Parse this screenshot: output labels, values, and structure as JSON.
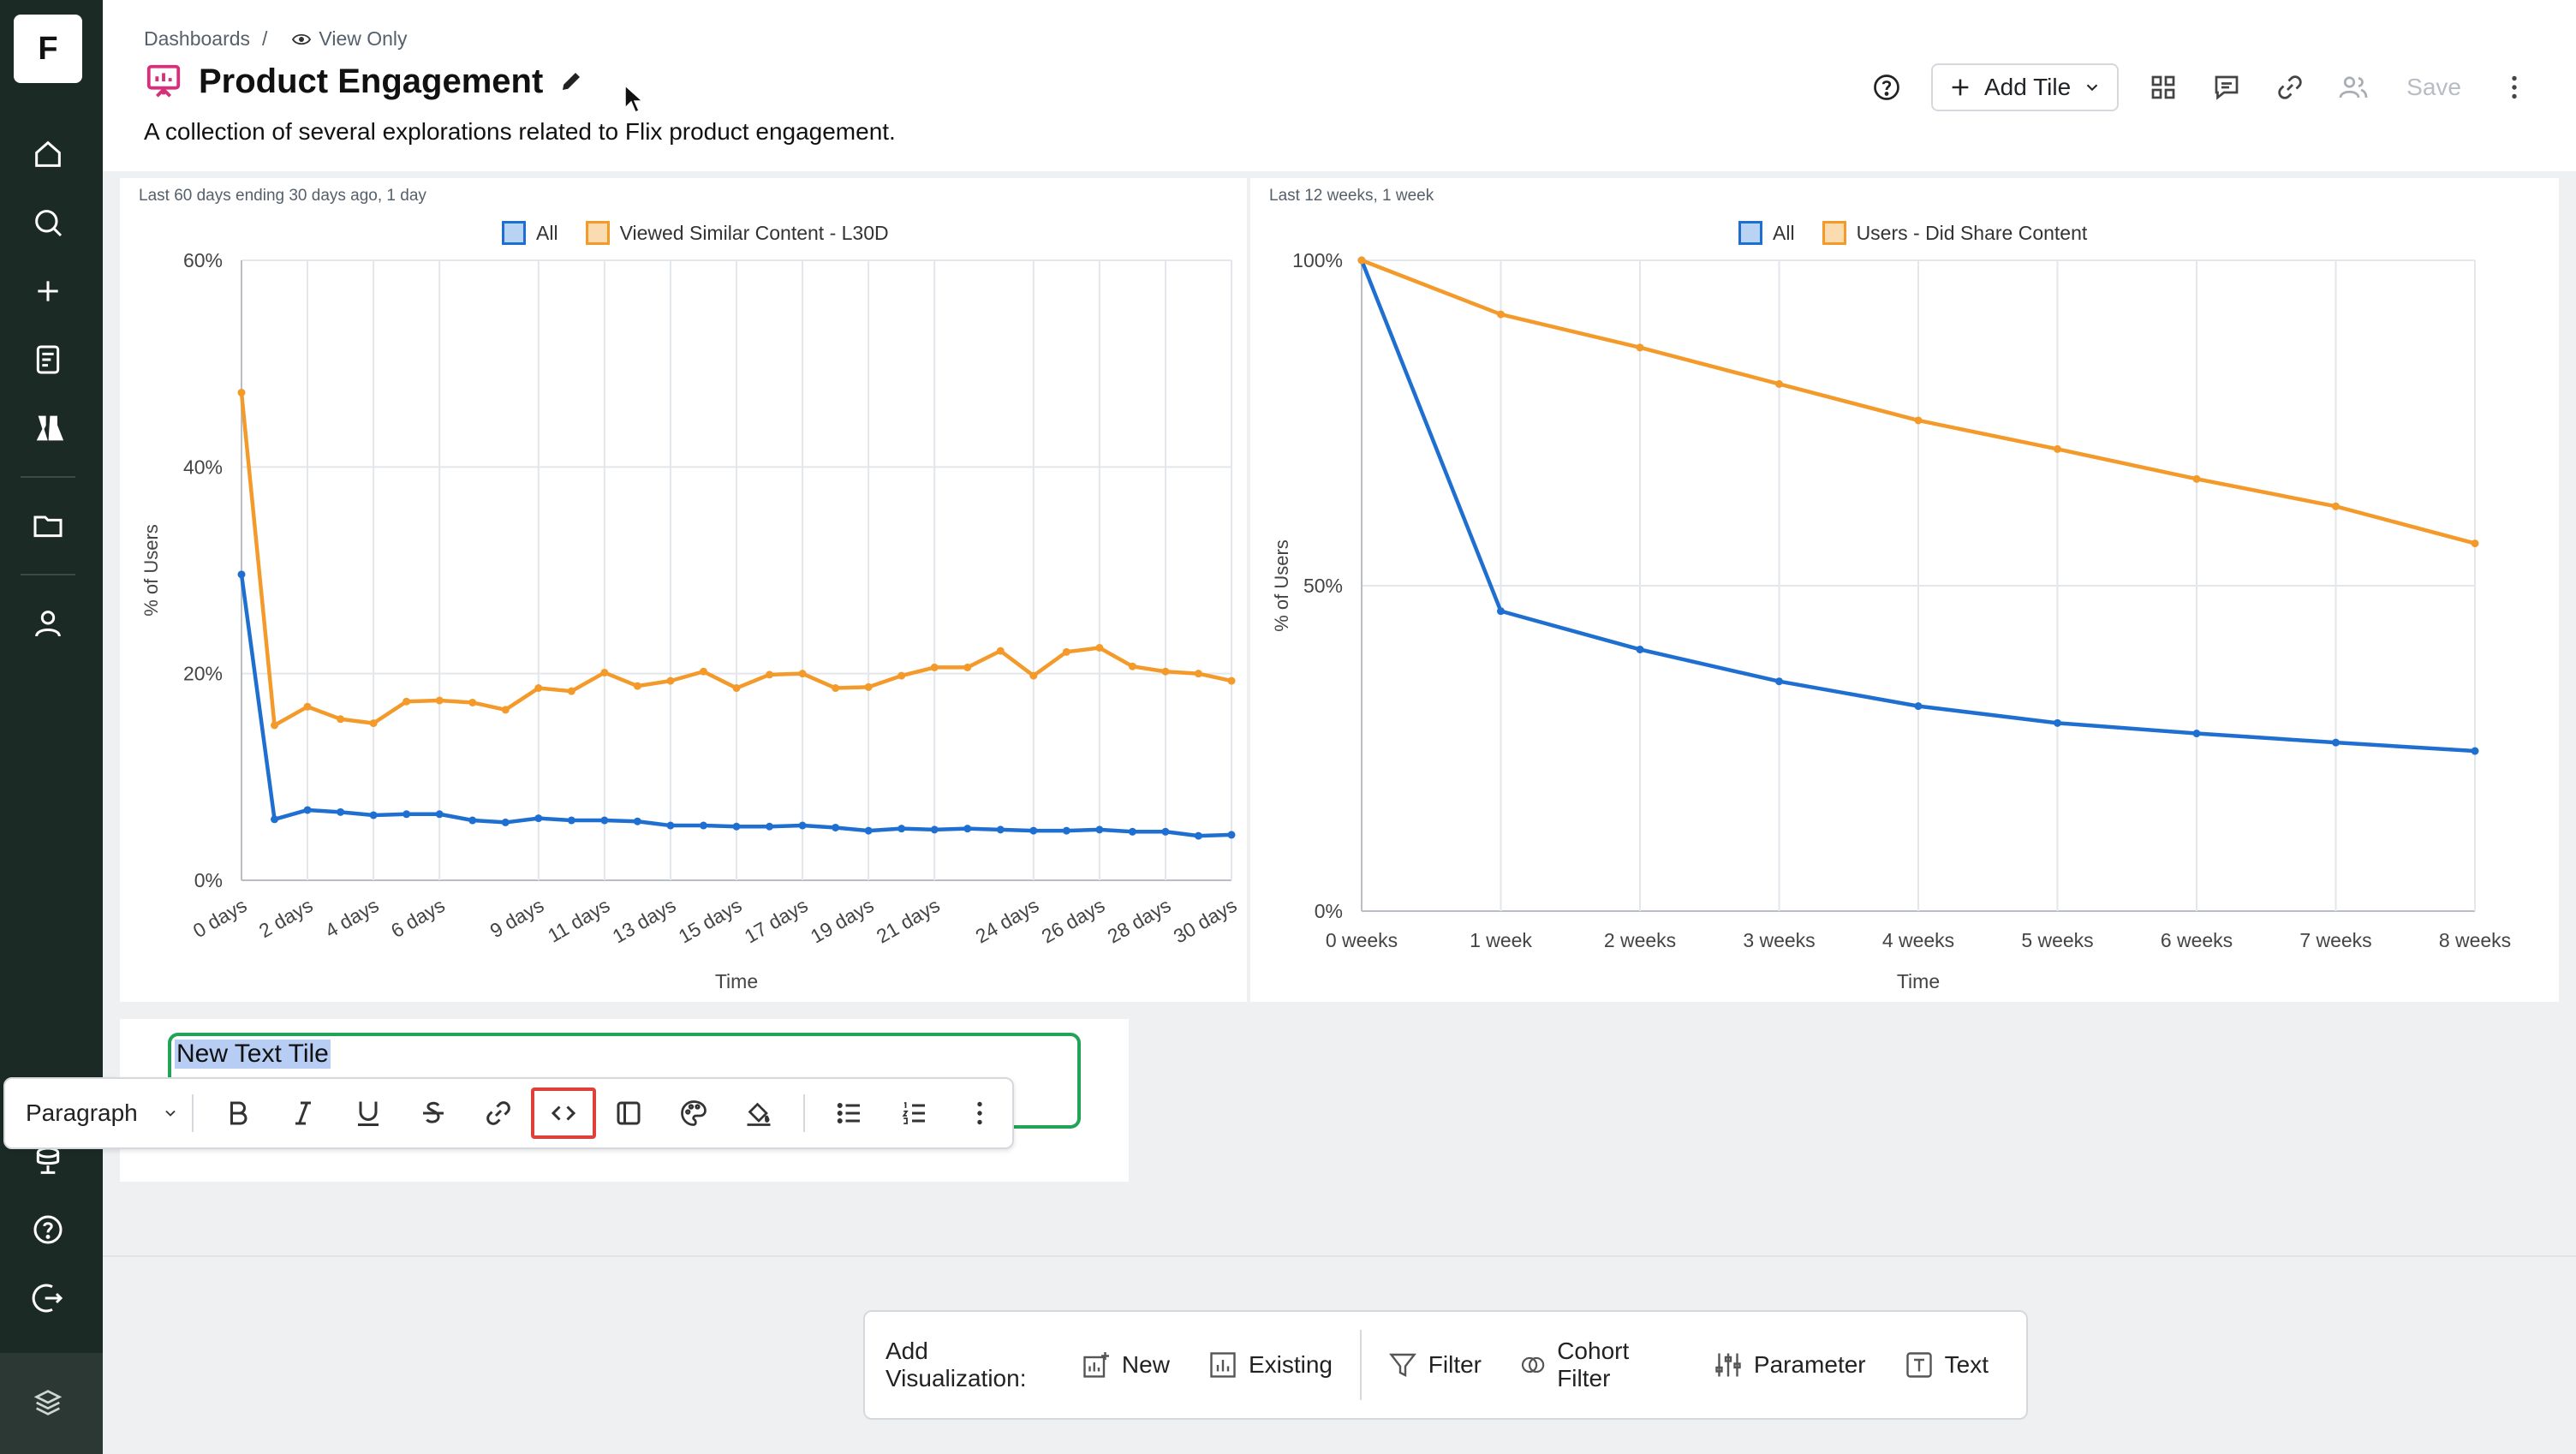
{
  "app": {
    "logo_letter": "F"
  },
  "sidebar": {
    "items": [
      {
        "name": "home-icon"
      },
      {
        "name": "search-icon"
      },
      {
        "name": "plus-icon"
      },
      {
        "name": "notebook-icon"
      },
      {
        "name": "experiments-icon"
      },
      {
        "name": "folder-icon"
      },
      {
        "name": "user-icon"
      },
      {
        "name": "data-model-icon"
      },
      {
        "name": "help-icon"
      },
      {
        "name": "logout-icon"
      },
      {
        "name": "brand-icon"
      }
    ]
  },
  "header": {
    "breadcrumb_root": "Dashboards",
    "breadcrumb_sep": "/",
    "view_only": "View Only",
    "title": "Product Engagement",
    "description": "A collection of several explorations related to Flix product engagement.",
    "add_tile_label": "Add Tile",
    "save_label": "Save"
  },
  "tiles": {
    "left_caption": "Last 60 days ending 30 days ago, 1 day",
    "right_caption": "Last 12 weeks, 1 week"
  },
  "colors": {
    "blue": "#1f6fd1",
    "orange": "#f39a2b",
    "green": "#22a356",
    "red": "#e0403a"
  },
  "chart_data": [
    {
      "type": "line",
      "title": "",
      "xlabel": "Time",
      "ylabel": "% of Users",
      "ylim": [
        0,
        60
      ],
      "yticks": [
        "0%",
        "20%",
        "40%",
        "60%"
      ],
      "xtick_labels": [
        "0 days",
        "2 days",
        "4 days",
        "6 days",
        "9 days",
        "11 days",
        "13 days",
        "15 days",
        "17 days",
        "19 days",
        "21 days",
        "24 days",
        "26 days",
        "28 days",
        "30 days"
      ],
      "x": [
        0,
        1,
        2,
        3,
        4,
        5,
        6,
        7,
        8,
        9,
        10,
        11,
        12,
        13,
        14,
        15,
        16,
        17,
        18,
        19,
        20,
        21,
        22,
        23,
        24,
        25,
        26,
        27,
        28,
        29,
        30
      ],
      "series": [
        {
          "name": "All",
          "color": "#1f6fd1",
          "values": [
            29.6,
            5.9,
            6.8,
            6.6,
            6.3,
            6.4,
            6.4,
            5.8,
            5.6,
            6.0,
            5.8,
            5.8,
            5.7,
            5.3,
            5.3,
            5.2,
            5.2,
            5.3,
            5.1,
            4.8,
            5.0,
            4.9,
            5.0,
            4.9,
            4.8,
            4.8,
            4.9,
            4.7,
            4.7,
            4.3,
            4.4
          ]
        },
        {
          "name": "Viewed Similar Content - L30D",
          "color": "#f39a2b",
          "values": [
            47.2,
            15.0,
            16.8,
            15.6,
            15.2,
            17.3,
            17.4,
            17.2,
            16.5,
            18.6,
            18.3,
            20.1,
            18.8,
            19.3,
            20.2,
            18.6,
            19.9,
            20.0,
            18.6,
            18.7,
            19.8,
            20.6,
            20.6,
            22.2,
            19.8,
            22.1,
            22.5,
            20.7,
            20.2,
            20.0,
            19.3
          ]
        }
      ],
      "legend": "top-center",
      "grid": true
    },
    {
      "type": "line",
      "title": "",
      "xlabel": "Time",
      "ylabel": "% of Users",
      "ylim": [
        0,
        100
      ],
      "yticks": [
        "0%",
        "50%",
        "100%"
      ],
      "categories": [
        "0 weeks",
        "1 week",
        "2 weeks",
        "3 weeks",
        "4 weeks",
        "5 weeks",
        "6 weeks",
        "7 weeks",
        "8 weeks"
      ],
      "series": [
        {
          "name": "All",
          "color": "#1f6fd1",
          "values": [
            100,
            46.1,
            40.2,
            35.3,
            31.5,
            28.9,
            27.3,
            25.9,
            24.6
          ]
        },
        {
          "name": "Users - Did Share Content",
          "color": "#f39a2b",
          "values": [
            100,
            91.7,
            86.6,
            81.0,
            75.4,
            71.0,
            66.4,
            62.2,
            56.5
          ]
        }
      ],
      "legend": "top-center",
      "grid": true
    }
  ],
  "text_tile": {
    "content": "New Text Tile"
  },
  "toolbar": {
    "block_type": "Paragraph",
    "buttons": [
      "bold-icon",
      "italic-icon",
      "underline-icon",
      "strikethrough-icon",
      "link-icon",
      "code-icon",
      "block-icon",
      "text-color-icon",
      "highlight-icon",
      "bullet-list-icon",
      "numbered-list-icon",
      "more-icon"
    ]
  },
  "add_bar": {
    "label": "Add Visualization:",
    "items": [
      {
        "label": "New"
      },
      {
        "label": "Existing"
      },
      {
        "label": "Filter"
      },
      {
        "label": "Cohort Filter"
      },
      {
        "label": "Parameter"
      },
      {
        "label": "Text"
      }
    ]
  }
}
